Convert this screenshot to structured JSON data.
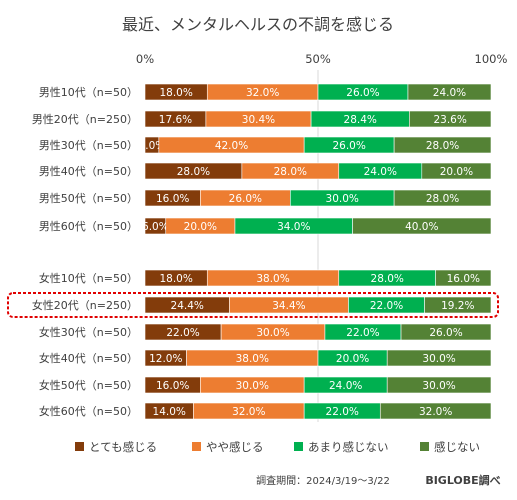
{
  "chart_data": {
    "type": "bar",
    "orientation": "horizontal",
    "stacked": "percent",
    "title": "最近、メンタルヘルスの不調を感じる",
    "x_ticks": [
      "0%",
      "50%",
      "100%"
    ],
    "xlim": [
      0,
      100
    ],
    "grid": "vertical at 50%",
    "legend_position": "bottom",
    "categories": [
      "男性10代（n=50）",
      "男性20代（n=250）",
      "男性30代（n=50）",
      "男性40代（n=50）",
      "男性50代（n=50）",
      "男性60代（n=50）",
      "",
      "女性10代（n=50）",
      "女性20代（n=250）",
      "女性30代（n=50）",
      "女性40代（n=50）",
      "女性50代（n=50）",
      "女性60代（n=50）"
    ],
    "series": [
      {
        "name": "とても感じる",
        "color": "#833c0b",
        "values": [
          18.0,
          17.6,
          4.0,
          28.0,
          16.0,
          6.0,
          null,
          18.0,
          24.4,
          22.0,
          12.0,
          16.0,
          14.0
        ]
      },
      {
        "name": "やや感じる",
        "color": "#ed7d31",
        "values": [
          32.0,
          30.4,
          42.0,
          28.0,
          26.0,
          20.0,
          null,
          38.0,
          34.4,
          30.0,
          38.0,
          30.0,
          32.0
        ]
      },
      {
        "name": "あまり感じない",
        "color": "#00b050",
        "values": [
          26.0,
          28.4,
          26.0,
          24.0,
          30.0,
          34.0,
          null,
          28.0,
          22.0,
          22.0,
          20.0,
          24.0,
          22.0
        ]
      },
      {
        "name": "感じない",
        "color": "#548235",
        "values": [
          24.0,
          23.6,
          28.0,
          20.0,
          28.0,
          40.0,
          null,
          16.0,
          19.2,
          26.0,
          30.0,
          30.0,
          32.0
        ]
      }
    ],
    "highlight_category": "女性20代（n=250）",
    "highlight_color": "#e00000"
  },
  "footer": {
    "source": "調査期間：2024/3/19～3/22",
    "brand": "BIGLOBE調べ"
  }
}
